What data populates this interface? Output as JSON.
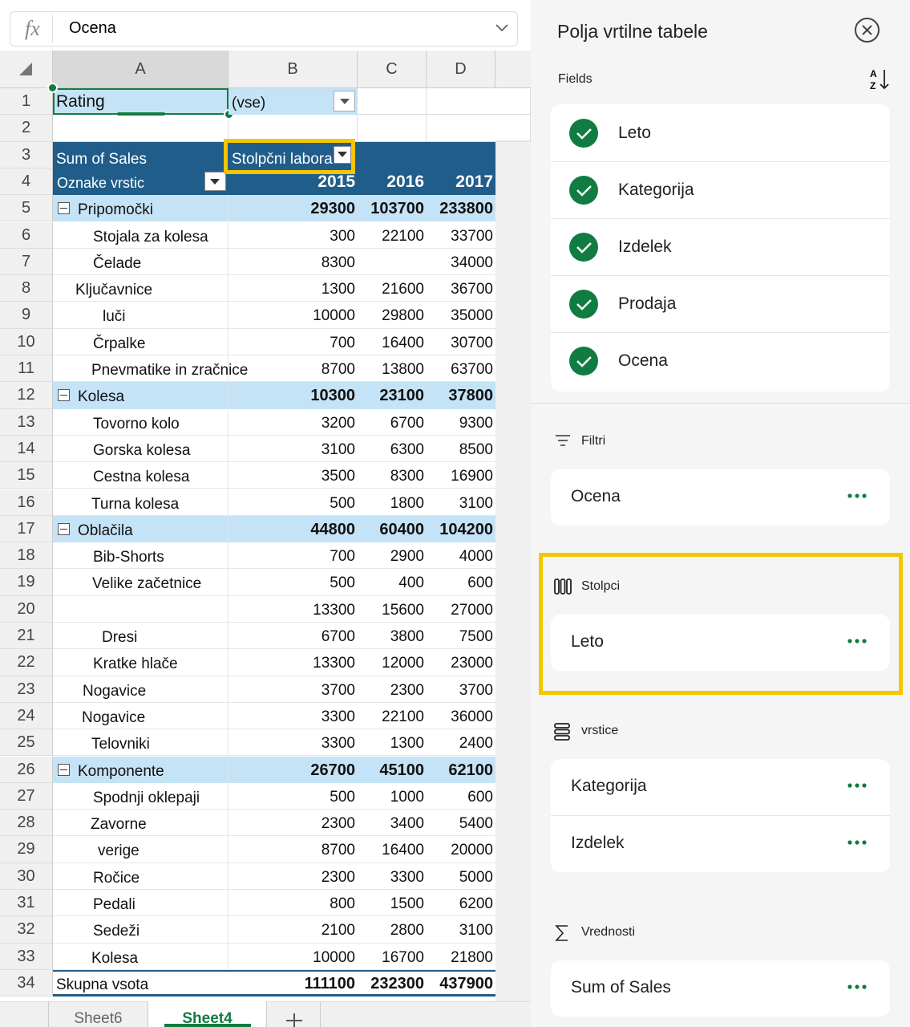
{
  "formula_bar": {
    "icon": "fx",
    "value": "Ocena"
  },
  "columns": [
    "A",
    "B",
    "C",
    "D"
  ],
  "row_numbers": [
    1,
    2,
    3,
    4,
    5,
    6,
    7,
    8,
    9,
    10,
    11,
    12,
    13,
    14,
    15,
    16,
    17,
    18,
    19,
    20,
    21,
    22,
    23,
    24,
    25,
    26,
    27,
    28,
    29,
    30,
    31,
    32,
    33,
    34
  ],
  "filter": {
    "label": "Rating",
    "value": "(vse)"
  },
  "pivot": {
    "values_label": "Sum of Sales",
    "columns_label": "Stolpčni labora",
    "rows_label": "Oznake vrstic",
    "years": [
      2015,
      2016,
      2017
    ],
    "groups": [
      {
        "name": "Pripomočki",
        "values": [
          29300,
          103700,
          233800
        ],
        "items": [
          {
            "name": "Stojala za kolesa",
            "values": [
              300,
              22100,
              33700
            ]
          },
          {
            "name": "Čelade",
            "values": [
              8300,
              null,
              34000
            ]
          },
          {
            "name": "Ključavnice",
            "values": [
              1300,
              21600,
              36700
            ]
          },
          {
            "name": "luči",
            "values": [
              10000,
              29800,
              35000
            ]
          },
          {
            "name": "Črpalke",
            "values": [
              700,
              16400,
              30700
            ]
          },
          {
            "name": "Pnevmatike in zračnice",
            "values": [
              8700,
              13800,
              63700
            ]
          }
        ]
      },
      {
        "name": "Kolesa",
        "values": [
          10300,
          23100,
          37800
        ],
        "items": [
          {
            "name": "Tovorno kolo",
            "values": [
              3200,
              6700,
              9300
            ]
          },
          {
            "name": "Gorska kolesa",
            "values": [
              3100,
              6300,
              8500
            ]
          },
          {
            "name": "Cestna kolesa",
            "values": [
              3500,
              8300,
              16900
            ]
          },
          {
            "name": "Turna kolesa",
            "values": [
              500,
              1800,
              3100
            ]
          }
        ]
      },
      {
        "name": "Oblačila",
        "values": [
          44800,
          60400,
          104200
        ],
        "items": [
          {
            "name": "Bib-Shorts",
            "values": [
              700,
              2900,
              4000
            ]
          },
          {
            "name": "Velike začetnice",
            "values": [
              500,
              400,
              600
            ]
          },
          {
            "name": null,
            "values": [
              13300,
              15600,
              27000
            ]
          },
          {
            "name": "Dresi",
            "values": [
              6700,
              3800,
              7500
            ]
          },
          {
            "name": "Kratke hlače",
            "values": [
              13300,
              12000,
              23000
            ]
          },
          {
            "name": "Nogavice",
            "values": [
              3700,
              2300,
              3700
            ]
          },
          {
            "name": "Nogavice",
            "values": [
              3300,
              22100,
              36000
            ]
          },
          {
            "name": "Telovniki",
            "values": [
              3300,
              1300,
              2400
            ]
          }
        ]
      },
      {
        "name": "Komponente",
        "values": [
          26700,
          45100,
          62100
        ],
        "items": [
          {
            "name": "Spodnji oklepaji",
            "values": [
              500,
              1000,
              600
            ]
          },
          {
            "name": "Zavorne",
            "values": [
              2300,
              3400,
              5400
            ]
          },
          {
            "name": "verige",
            "values": [
              8700,
              16400,
              20000
            ]
          },
          {
            "name": "Ročice",
            "values": [
              2300,
              3300,
              5000
            ]
          },
          {
            "name": "Pedali",
            "values": [
              800,
              1500,
              6200
            ]
          },
          {
            "name": "Sedeži",
            "values": [
              2100,
              2800,
              3100
            ]
          },
          {
            "name": "Kolesa",
            "values": [
              10000,
              16700,
              21800
            ]
          }
        ]
      }
    ],
    "total": {
      "name": "Skupna vsota",
      "values": [
        111100,
        232300,
        437900
      ]
    }
  },
  "sheet_tabs": [
    "Sheet6",
    "Sheet4"
  ],
  "panel": {
    "title": "Polja vrtilne tabele",
    "fields_label": "Fields",
    "fields": [
      "Leto",
      "Kategorija",
      "Izdelek",
      "Prodaja",
      "Ocena"
    ],
    "areas": [
      {
        "label": "Filtri",
        "items": [
          "Ocena"
        ]
      },
      {
        "label": "Stolpci",
        "items": [
          "Leto"
        ]
      },
      {
        "label": "vrstice",
        "items": [
          "Kategorija",
          "Izdelek"
        ]
      },
      {
        "label": "Vrednosti",
        "items": [
          "Sum of Sales"
        ]
      }
    ]
  }
}
